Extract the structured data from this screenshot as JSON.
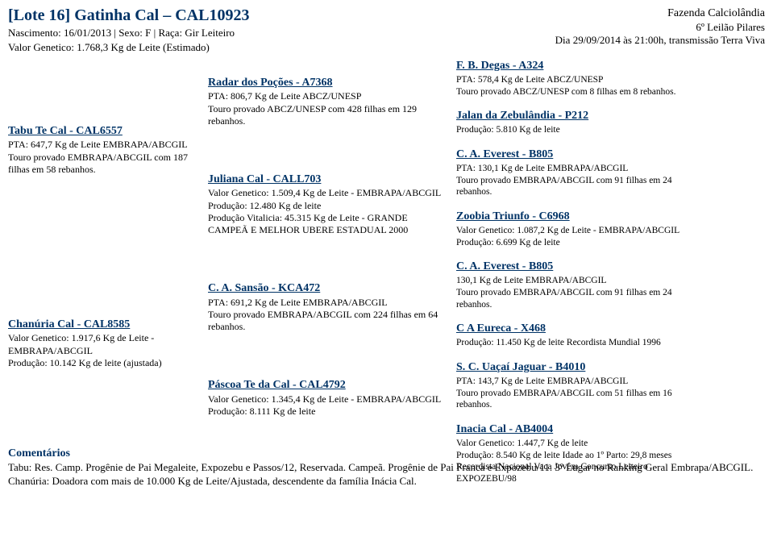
{
  "header": {
    "title": "[Lote 16] Gatinha Cal – CAL10923",
    "birth_line": "Nascimento: 16/01/2013 | Sexo: F | Raça: Gir Leiteiro",
    "vg_line": "Valor Genetico: 1.768,3 Kg de Leite (Estimado)",
    "farm": "Fazenda Calciolândia",
    "auction": "6º Leilão Pilares",
    "date": "Dia 29/09/2014 às 21:00h, transmissão Terra Viva"
  },
  "sire": {
    "name": "Tabu Te Cal - CAL6557",
    "pta": "PTA: 647,7 Kg de Leite EMBRAPA/ABCGIL",
    "line2": "Touro provado EMBRAPA/ABCGIL com 187 filhas em 58 rebanhos."
  },
  "dam": {
    "name": "Chanúria Cal - CAL8585",
    "vg": "Valor Genetico: 1.917,6 Kg de Leite - EMBRAPA/ABCGIL",
    "prod": "Produção: 10.142 Kg de leite (ajustada)"
  },
  "ss": {
    "name": "Radar dos Poções - A7368",
    "pta": "PTA: 806,7 Kg de Leite ABCZ/UNESP",
    "line2": "Touro provado ABCZ/UNESP com 428 filhas em 129 rebanhos."
  },
  "sd": {
    "name": "Juliana Cal - CALL703",
    "vg": "Valor Genetico: 1.509,4 Kg de Leite - EMBRAPA/ABCGIL",
    "prod": "Produção: 12.480 Kg de leite",
    "vit": "Produção Vitalicia: 45.315 Kg de Leite - GRANDE CAMPEÃ E MELHOR UBERE ESTADUAL 2000"
  },
  "ds": {
    "name": "C. A. Sansão - KCA472",
    "pta": "PTA: 691,2 Kg de Leite EMBRAPA/ABCGIL",
    "line2": "Touro provado EMBRAPA/ABCGIL com 224 filhas em 64 rebanhos."
  },
  "dd": {
    "name": "Páscoa Te da Cal - CAL4792",
    "vg": "Valor Genetico: 1.345,4 Kg de Leite - EMBRAPA/ABCGIL",
    "prod": "Produção: 8.111 Kg de leite"
  },
  "sss": {
    "name": "F. B. Degas - A324",
    "pta": "PTA: 578,4 Kg de Leite ABCZ/UNESP",
    "line2": "Touro provado ABCZ/UNESP com 8 filhas em 8 rebanhos."
  },
  "ssd": {
    "name": "Jalan da Zebulândia - P212",
    "prod": "Produção: 5.810 Kg de leite"
  },
  "sds": {
    "name": "C. A. Everest - B805",
    "pta": "PTA: 130,1 Kg de Leite EMBRAPA/ABCGIL",
    "line2": "Touro provado EMBRAPA/ABCGIL com 91 filhas em 24 rebanhos."
  },
  "sdd": {
    "name": "Zoobia Triunfo - C6968",
    "vg": "Valor Genetico: 1.087,2 Kg de Leite - EMBRAPA/ABCGIL",
    "prod": "Produção: 6.699 Kg de leite"
  },
  "dss": {
    "name": "C. A. Everest - B805",
    "pta": "130,1 Kg de Leite EMBRAPA/ABCGIL",
    "line2": "Touro provado EMBRAPA/ABCGIL com 91 filhas em 24 rebanhos."
  },
  "dsd": {
    "name": "C A Eureca - X468",
    "prod": "Produção: 11.450 Kg de leite Recordista Mundial 1996"
  },
  "dds": {
    "name": "S. C. Uaçaí Jaguar - B4010",
    "pta": "PTA: 143,7 Kg de Leite EMBRAPA/ABCGIL",
    "line2": "Touro provado EMBRAPA/ABCGIL com 51 filhas em 16 rebanhos."
  },
  "ddd": {
    "name": "Inacia Cal - AB4004",
    "vg": "Valor Genetico: 1.447,7 Kg de leite",
    "prod": "Produção: 8.540 Kg de leite Idade ao 1º Parto: 29,8 meses Recordista Nacional Vaca Jovêm Concurso Leiteiro EXPOZEBU/98"
  },
  "comments": {
    "hd": "Comentários",
    "text": "Tabu: Res. Camp. Progênie de Pai Megaleite, Expozebu e Passos/12, Reservada. Campeã. Progênie de Pai Franca e Expozebu/11. 3º Lugar no Ranking Geral Embrapa/ABCGIL. Chanúria: Doadora com mais de 10.000 Kg de Leite/Ajustada, descendente da família Inácia Cal."
  }
}
